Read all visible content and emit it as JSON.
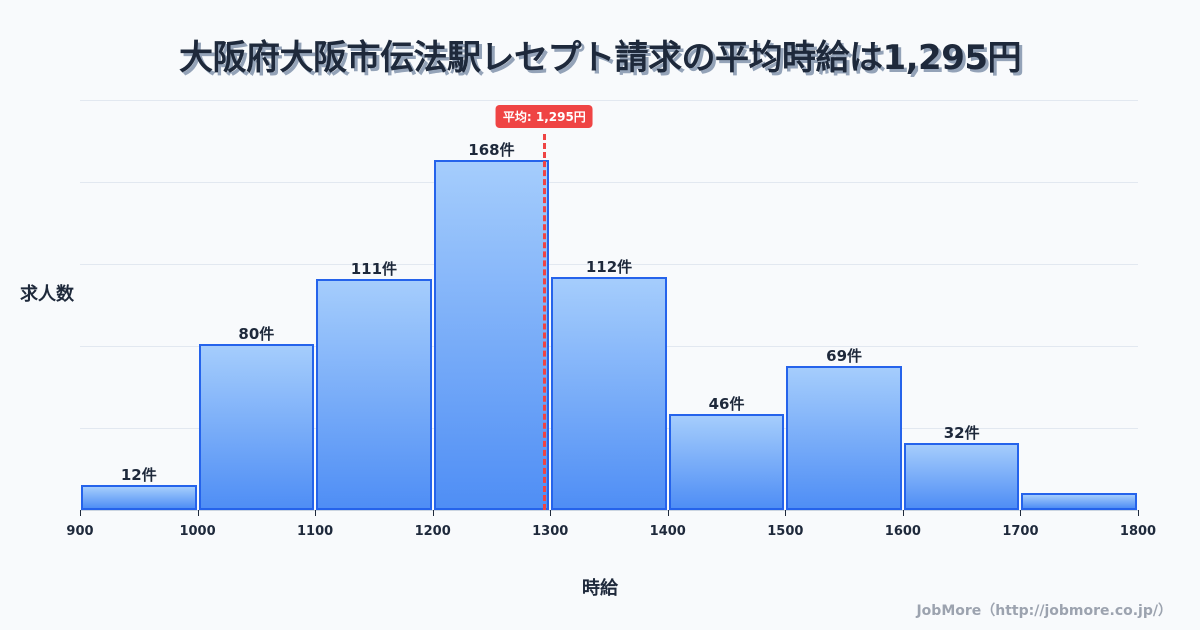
{
  "title": "大阪府大阪市伝法駅レセプト請求の平均時給は1,295円",
  "ylabel": "求人数",
  "xlabel": "時給",
  "credit": "JobMore（http://jobmore.co.jp/）",
  "average": {
    "value": 1295,
    "label": "平均: 1,295円",
    "color": "#ef4444"
  },
  "colors": {
    "bar_top": "#a5cdfc",
    "bar_bottom": "#4f8ef5",
    "bar_border": "#2563eb",
    "title": "#1e293b",
    "grid": "#e2e8f0"
  },
  "chart_data": {
    "type": "bar",
    "title": "大阪府大阪市伝法駅レセプト請求の平均時給は1,295円",
    "xlabel": "時給",
    "ylabel": "求人数",
    "categories": [
      "900-1000",
      "1000-1100",
      "1100-1200",
      "1200-1300",
      "1300-1400",
      "1400-1500",
      "1500-1600",
      "1600-1700",
      "1700-1800"
    ],
    "bin_edges": [
      900,
      1000,
      1100,
      1200,
      1300,
      1400,
      1500,
      1600,
      1700,
      1800
    ],
    "values": [
      12,
      80,
      111,
      168,
      112,
      46,
      69,
      32,
      8
    ],
    "value_labels": [
      "12件",
      "80件",
      "111件",
      "168件",
      "112件",
      "46件",
      "69件",
      "32件",
      ""
    ],
    "x_ticks": [
      "900",
      "1000",
      "1100",
      "1200",
      "1300",
      "1400",
      "1500",
      "1600",
      "1700",
      "1800"
    ],
    "xlim": [
      900,
      1800
    ],
    "ylim": [
      0,
      197
    ],
    "grid": true,
    "gridlines_count": 5,
    "annotations": [
      {
        "type": "vline",
        "x": 1295,
        "label": "平均: 1,295円",
        "style": "dashed",
        "color": "#ef4444"
      }
    ],
    "legend": "none"
  }
}
